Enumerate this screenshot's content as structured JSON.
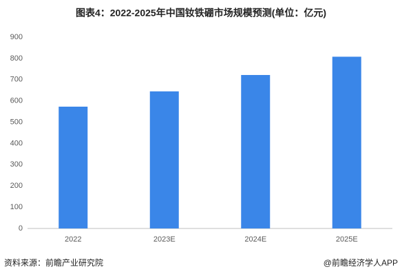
{
  "chart_data": {
    "type": "bar",
    "title": "图表4：2022-2025年中国钕铁硼市场规模预测(单位：亿元)",
    "categories": [
      "2022",
      "2023E",
      "2024E",
      "2025E"
    ],
    "values": [
      573,
      645,
      722,
      808
    ],
    "color": "#3a86e8",
    "ylim": [
      0,
      900
    ],
    "yticks": [
      0,
      100,
      200,
      300,
      400,
      500,
      600,
      700,
      800,
      900
    ],
    "grid": false,
    "source": "资料来源：前瞻产业研究院",
    "credit": "@前瞻经济学人APP"
  }
}
